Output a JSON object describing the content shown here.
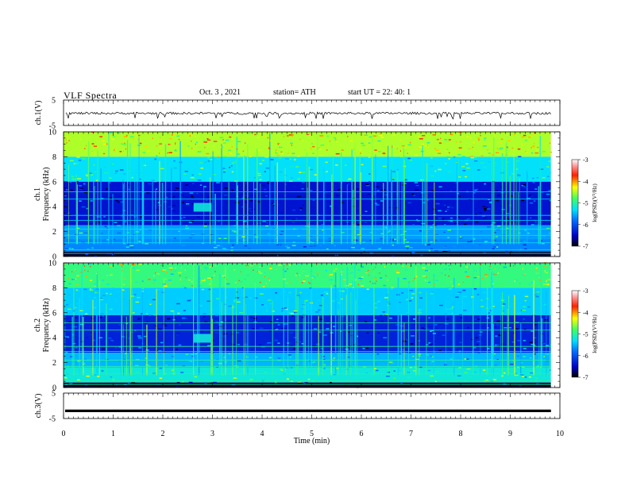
{
  "header": {
    "title": "VLF  Spectra",
    "date": "Oct. 3  , 2021",
    "station": "station= ATH",
    "start": "start  UT  =    22: 40: 1"
  },
  "chart_data": [
    {
      "type": "line",
      "panel": "ch1-waveform",
      "ylabel": "ch.1(V)",
      "y_ticks": [
        "5",
        "-5"
      ],
      "ylim": [
        -5,
        5
      ],
      "xlim": [
        0,
        10
      ],
      "description_of_values": "noisy waveform ~0 V with short spikes to about -1.5 V, data ending near 9.8 min"
    },
    {
      "type": "heatmap",
      "panel": "ch1-spectrogram",
      "ylabel_top": "ch.1",
      "ylabel": "Frequency  (kHz)",
      "y_ticks": [
        "0",
        "2",
        "4",
        "6",
        "8",
        "10"
      ],
      "ylim": [
        0,
        10
      ],
      "xlim": [
        0,
        10
      ],
      "colorbar": {
        "label": "log(PSD)(V²/Hz)",
        "ticks": [
          "-3",
          "-4",
          "-5",
          "-6",
          "-7"
        ],
        "range": [
          -7,
          -3
        ]
      },
      "bands": [
        {
          "f": [
            8,
            10
          ],
          "level": -4.5
        },
        {
          "f": [
            6,
            8
          ],
          "level": -5.3
        },
        {
          "f": [
            2.5,
            6
          ],
          "level": -6.4
        },
        {
          "f": [
            1.4,
            2.5
          ],
          "level": -5.6
        },
        {
          "f": [
            0.4,
            1.4
          ],
          "level": -5.7
        },
        {
          "f": [
            0,
            0.4
          ],
          "level": -6.9
        }
      ]
    },
    {
      "type": "heatmap",
      "panel": "ch2-spectrogram",
      "ylabel_top": "ch.2",
      "ylabel": "Frequency  (kHz)",
      "y_ticks": [
        "0",
        "2",
        "4",
        "6",
        "8",
        "10"
      ],
      "ylim": [
        0,
        10
      ],
      "xlim": [
        0,
        10
      ],
      "colorbar": {
        "label": "log(PSD)(V²/Hz)",
        "ticks": [
          "-3",
          "-4",
          "-5",
          "-6",
          "-7"
        ],
        "range": [
          -7,
          -3
        ]
      },
      "bands": [
        {
          "f": [
            8,
            10
          ],
          "level": -4.9
        },
        {
          "f": [
            5.8,
            8
          ],
          "level": -5.4
        },
        {
          "f": [
            2.8,
            5.8
          ],
          "level": -6.3
        },
        {
          "f": [
            1.6,
            2.8
          ],
          "level": -5.5
        },
        {
          "f": [
            0.4,
            1.6
          ],
          "level": -5.2
        },
        {
          "f": [
            0,
            0.4
          ],
          "level": -6.9
        }
      ]
    },
    {
      "type": "line",
      "panel": "ch3-waveform",
      "ylabel": "ch.3(V)",
      "y_ticks": [
        "5",
        "-5"
      ],
      "ylim": [
        -5,
        5
      ],
      "xlim": [
        0,
        10
      ],
      "level_V": -2,
      "description_of_values": "flat thick line at about -2 V"
    }
  ],
  "x_axis": {
    "xlabel": "Time  (min)",
    "ticks": [
      "0",
      "1",
      "2",
      "3",
      "4",
      "5",
      "6",
      "7",
      "8",
      "9",
      "10"
    ]
  },
  "colors": {
    "axis": "#000000",
    "waveform": "#000000"
  }
}
